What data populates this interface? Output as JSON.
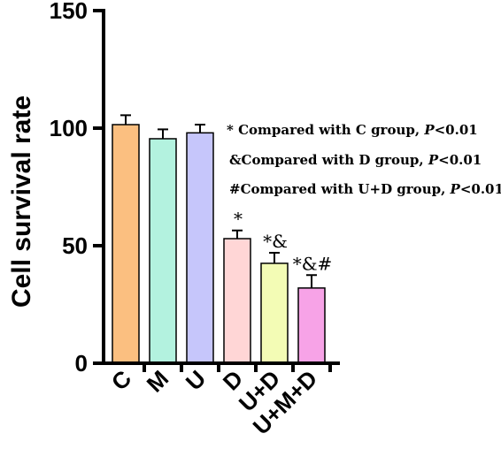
{
  "chart_data": {
    "type": "bar",
    "title": "",
    "xlabel": "",
    "ylabel": "Cell survival rate",
    "ylim": [
      0,
      150
    ],
    "yticks": [
      0,
      50,
      100,
      150
    ],
    "grid": false,
    "categories": [
      "C",
      "M",
      "U",
      "D",
      "U+D",
      "U+M+D"
    ],
    "values": [
      101.5,
      95.5,
      98,
      53,
      42.5,
      32
    ],
    "errors": [
      4,
      4,
      3.5,
      3.5,
      4.5,
      5.5
    ],
    "significance": [
      "",
      "",
      "",
      "*",
      "*&",
      "*&#"
    ],
    "colors": [
      "#fbbf80",
      "#b3f2df",
      "#c6c6fb",
      "#ffd6d6",
      "#f3fcb5",
      "#f7a3e7"
    ],
    "annotations": [
      {
        "prefix": "* Compared with C group, ",
        "p": "P",
        "suffix": "<0.01"
      },
      {
        "prefix": "&Compared with D group, ",
        "p": "P",
        "suffix": "<0.01"
      },
      {
        "prefix": "#Compared with U+D group, ",
        "p": "P",
        "suffix": "<0.01"
      }
    ]
  }
}
